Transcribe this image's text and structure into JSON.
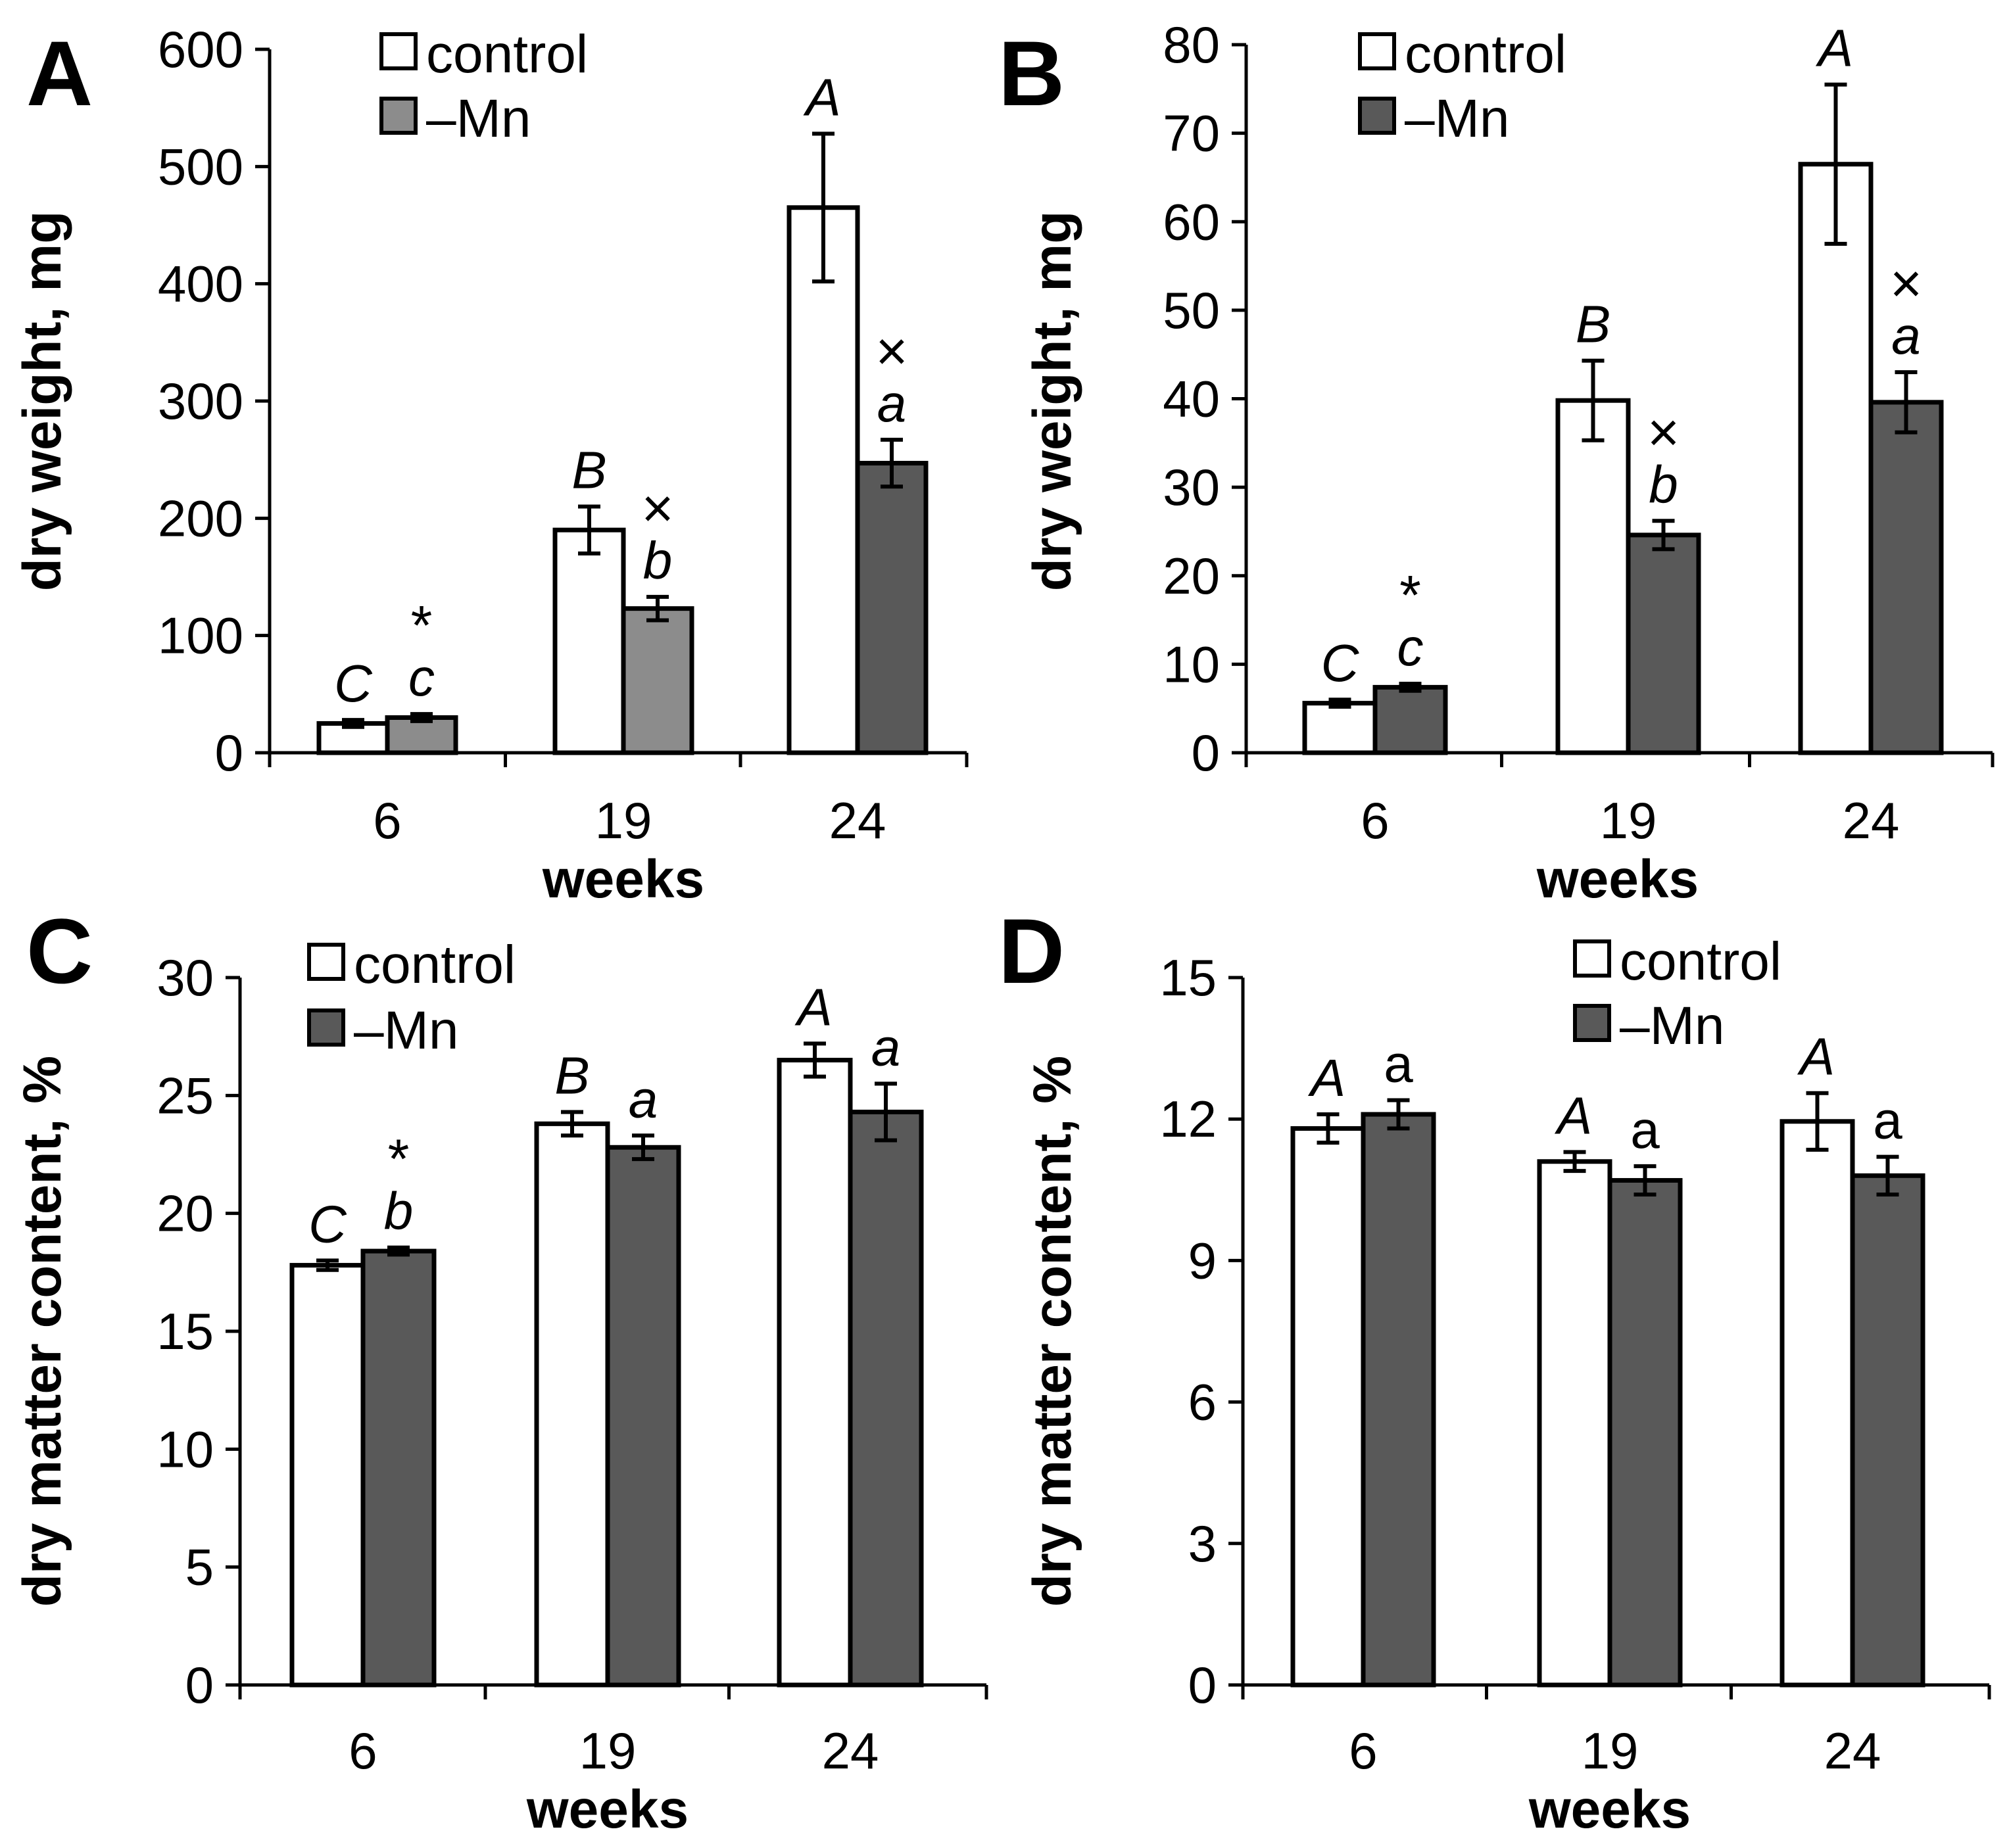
{
  "chart_data": [
    {
      "panel": "A",
      "type": "bar",
      "categories": [
        "6",
        "19",
        "24"
      ],
      "xlabel": "weeks",
      "ylabel": "dry weight, mg",
      "ylim": [
        0,
        600
      ],
      "yticks": [
        "0",
        "100",
        "200",
        "300",
        "400",
        "500",
        "600"
      ],
      "series": [
        {
          "name": "control",
          "values": [
            25,
            190,
            465
          ],
          "errors": [
            3,
            20,
            63
          ],
          "color": "#ffffff"
        },
        {
          "name": "–Mn",
          "values": [
            30,
            123,
            247
          ],
          "errors": [
            3,
            10,
            20
          ],
          "colors": [
            "#8c8c8c",
            "#8c8c8c",
            "#595959"
          ]
        }
      ],
      "legend": [
        {
          "label": "control",
          "color": "#ffffff"
        },
        {
          "label": "–Mn",
          "color": "#8c8c8c"
        }
      ],
      "annotations": [
        {
          "series": 0,
          "category": 0,
          "text": "C",
          "mark": ""
        },
        {
          "series": 1,
          "category": 0,
          "text": "c",
          "mark": "*"
        },
        {
          "series": 0,
          "category": 1,
          "text": "B",
          "mark": ""
        },
        {
          "series": 1,
          "category": 1,
          "text": "b",
          "mark": "×"
        },
        {
          "series": 0,
          "category": 2,
          "text": "A",
          "mark": ""
        },
        {
          "series": 1,
          "category": 2,
          "text": "a",
          "mark": "×"
        }
      ]
    },
    {
      "panel": "B",
      "type": "bar",
      "categories": [
        "6",
        "19",
        "24"
      ],
      "xlabel": "weeks",
      "ylabel": "dry weight, mg",
      "ylim": [
        0,
        80
      ],
      "yticks": [
        "0",
        "10",
        "20",
        "30",
        "40",
        "50",
        "60",
        "70",
        "80"
      ],
      "series": [
        {
          "name": "control",
          "values": [
            5.6,
            39.8,
            66.5
          ],
          "errors": [
            0.4,
            4.5,
            9
          ],
          "color": "#ffffff"
        },
        {
          "name": "–Mn",
          "values": [
            7.4,
            24.6,
            39.6
          ],
          "errors": [
            0.4,
            1.6,
            3.4
          ],
          "colors": [
            "#595959",
            "#595959",
            "#595959"
          ]
        }
      ],
      "legend": [
        {
          "label": "control",
          "color": "#ffffff"
        },
        {
          "label": "–Mn",
          "color": "#595959"
        }
      ],
      "annotations": [
        {
          "series": 0,
          "category": 0,
          "text": "C",
          "mark": ""
        },
        {
          "series": 1,
          "category": 0,
          "text": "c",
          "mark": "*"
        },
        {
          "series": 0,
          "category": 1,
          "text": "B",
          "mark": ""
        },
        {
          "series": 1,
          "category": 1,
          "text": "b",
          "mark": "×"
        },
        {
          "series": 0,
          "category": 2,
          "text": "A",
          "mark": ""
        },
        {
          "series": 1,
          "category": 2,
          "text": "a",
          "mark": "×"
        }
      ]
    },
    {
      "panel": "C",
      "type": "bar",
      "categories": [
        "6",
        "19",
        "24"
      ],
      "xlabel": "weeks",
      "ylabel": "dry matter content, %",
      "ylim": [
        0,
        30
      ],
      "yticks": [
        "0",
        "5",
        "10",
        "15",
        "20",
        "25",
        "30"
      ],
      "series": [
        {
          "name": "control",
          "values": [
            17.8,
            23.8,
            26.5
          ],
          "errors": [
            0.2,
            0.5,
            0.7
          ],
          "color": "#ffffff"
        },
        {
          "name": "–Mn",
          "values": [
            18.4,
            22.8,
            24.3
          ],
          "errors": [
            0.15,
            0.5,
            1.2
          ],
          "colors": [
            "#595959",
            "#595959",
            "#595959"
          ]
        }
      ],
      "legend": [
        {
          "label": "control",
          "color": "#ffffff"
        },
        {
          "label": "–Mn",
          "color": "#595959"
        }
      ],
      "annotations": [
        {
          "series": 0,
          "category": 0,
          "text": "C",
          "mark": ""
        },
        {
          "series": 1,
          "category": 0,
          "text": "b",
          "mark": "*"
        },
        {
          "series": 0,
          "category": 1,
          "text": "B",
          "mark": ""
        },
        {
          "series": 1,
          "category": 1,
          "text": "a",
          "mark": ""
        },
        {
          "series": 0,
          "category": 2,
          "text": "A",
          "mark": ""
        },
        {
          "series": 1,
          "category": 2,
          "text": "a",
          "mark": ""
        }
      ]
    },
    {
      "panel": "D",
      "type": "bar",
      "categories": [
        "6",
        "19",
        "24"
      ],
      "xlabel": "weeks",
      "ylabel": "dry matter content, %",
      "ylim": [
        0,
        15
      ],
      "yticks": [
        "0",
        "3",
        "6",
        "9",
        "12",
        "15"
      ],
      "series": [
        {
          "name": "control",
          "values": [
            11.8,
            11.1,
            11.95
          ],
          "errors": [
            0.3,
            0.2,
            0.6
          ],
          "color": "#ffffff"
        },
        {
          "name": "–Mn",
          "values": [
            12.1,
            10.7,
            10.8
          ],
          "errors": [
            0.3,
            0.3,
            0.4
          ],
          "colors": [
            "#595959",
            "#595959",
            "#595959"
          ]
        }
      ],
      "legend": [
        {
          "label": "control",
          "color": "#ffffff"
        },
        {
          "label": "–Mn",
          "color": "#595959"
        }
      ],
      "annotations": [
        {
          "series": 0,
          "category": 0,
          "text": "A",
          "mark": ""
        },
        {
          "series": 1,
          "category": 0,
          "text": "a",
          "mark": ""
        },
        {
          "series": 0,
          "category": 1,
          "text": "A",
          "mark": ""
        },
        {
          "series": 1,
          "category": 1,
          "text": "a",
          "mark": ""
        },
        {
          "series": 0,
          "category": 2,
          "text": "A",
          "mark": ""
        },
        {
          "series": 1,
          "category": 2,
          "text": "a",
          "mark": ""
        }
      ]
    }
  ]
}
